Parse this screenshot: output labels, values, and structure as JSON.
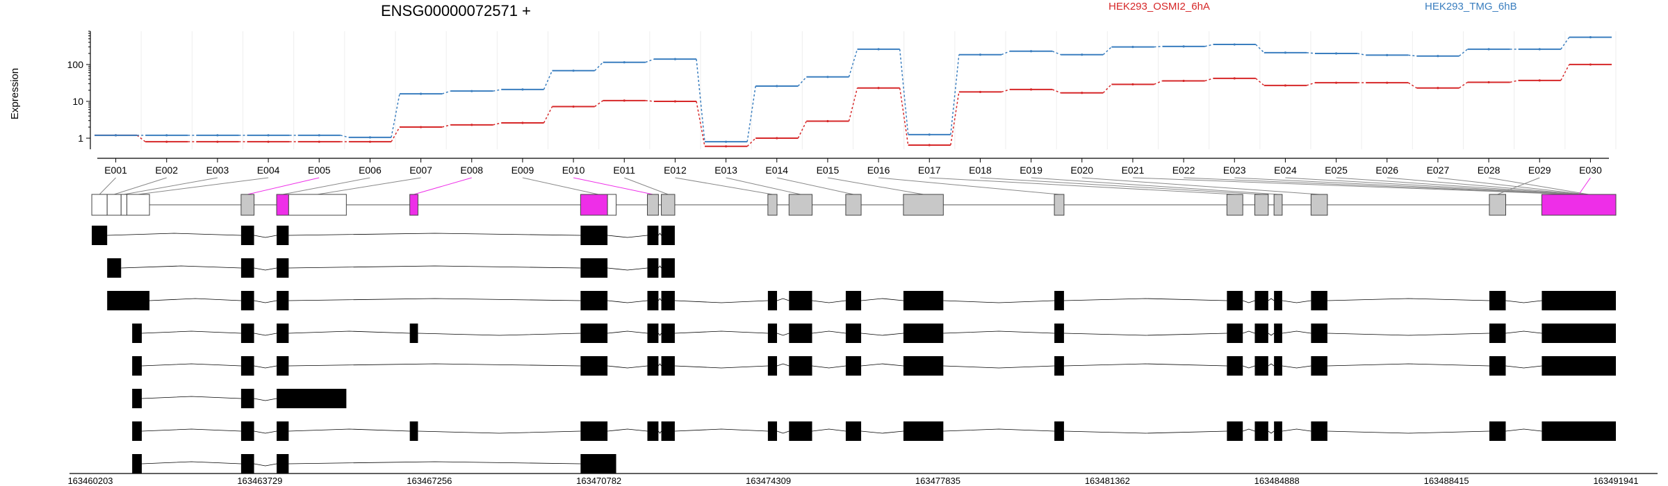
{
  "chart_data": {
    "type": "line",
    "title": "ENSG00000072571 +",
    "ylabel": "Expression",
    "yscale": "log",
    "ylim": [
      0.5,
      800
    ],
    "yticks": [
      1,
      10,
      100
    ],
    "categories": [
      "E001",
      "E002",
      "E003",
      "E004",
      "E005",
      "E006",
      "E007",
      "E008",
      "E009",
      "E010",
      "E011",
      "E012",
      "E013",
      "E014",
      "E015",
      "E016",
      "E017",
      "E018",
      "E019",
      "E020",
      "E021",
      "E022",
      "E023",
      "E024",
      "E025",
      "E026",
      "E027",
      "E028",
      "E029",
      "E030"
    ],
    "series": [
      {
        "name": "HEK293_OSMI2_6hA",
        "color": "#d62728",
        "values": [
          1.2,
          0.8,
          0.8,
          0.8,
          0.8,
          0.8,
          2.0,
          2.3,
          2.6,
          7.2,
          10.5,
          10.0,
          0.6,
          1.0,
          2.9,
          23,
          0.65,
          18,
          21,
          17,
          29,
          36,
          42,
          27,
          32,
          32,
          23,
          33,
          37,
          100
        ]
      },
      {
        "name": "HEK293_TMG_6hB",
        "color": "#3a7ebf",
        "values": [
          1.2,
          1.2,
          1.2,
          1.2,
          1.2,
          1.05,
          16,
          19,
          21,
          68,
          115,
          140,
          0.8,
          26,
          46,
          260,
          1.25,
          185,
          230,
          185,
          300,
          310,
          350,
          210,
          200,
          180,
          170,
          260,
          260,
          550
        ]
      }
    ],
    "genomic_axis": {
      "ticks": [
        "163460203",
        "163463729",
        "163467256",
        "163470782",
        "163474309",
        "163477835",
        "163481362",
        "163484888",
        "163488415",
        "163491941"
      ],
      "range": [
        163460203,
        163491941
      ]
    },
    "gene_model": {
      "highlight_color": "#ee2ee8",
      "highlighted_exons": [
        "E005",
        "E008",
        "E010",
        "E030"
      ]
    },
    "transcript_count": 8
  }
}
